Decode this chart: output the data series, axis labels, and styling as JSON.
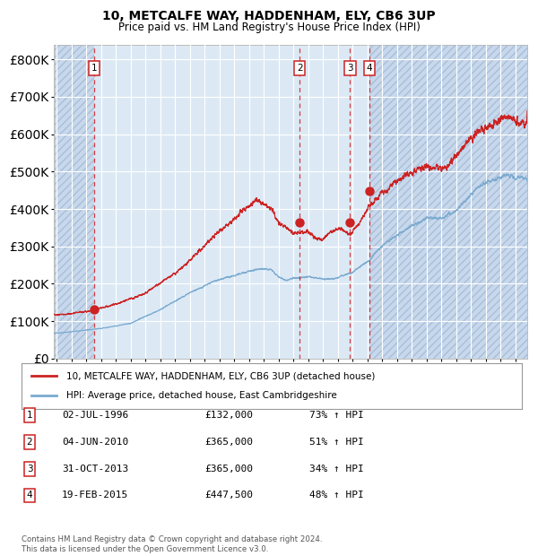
{
  "title": "10, METCALFE WAY, HADDENHAM, ELY, CB6 3UP",
  "subtitle": "Price paid vs. HM Land Registry's House Price Index (HPI)",
  "purchases": [
    {
      "label": "1",
      "date_num": 1996.54,
      "price": 132000,
      "date_str": "02-JUL-1996",
      "pct": "73%",
      "dir": "↑"
    },
    {
      "label": "2",
      "date_num": 2010.42,
      "price": 365000,
      "date_str": "04-JUN-2010",
      "pct": "51%",
      "dir": "↑"
    },
    {
      "label": "3",
      "date_num": 2013.83,
      "price": 365000,
      "date_str": "31-OCT-2013",
      "pct": "34%",
      "dir": "↑"
    },
    {
      "label": "4",
      "date_num": 2015.12,
      "price": 447500,
      "date_str": "19-FEB-2015",
      "pct": "48%",
      "dir": "↑"
    }
  ],
  "legend_line1": "10, METCALFE WAY, HADDENHAM, ELY, CB6 3UP (detached house)",
  "legend_line2": "HPI: Average price, detached house, East Cambridgeshire",
  "footer": "Contains HM Land Registry data © Crown copyright and database right 2024.\nThis data is licensed under the Open Government Licence v3.0.",
  "plot_bg": "#dce9f5",
  "hatch_bg": "#c8d8ec",
  "red_color": "#cc2222",
  "blue_color": "#7aaad0",
  "ylim": [
    0,
    840000
  ],
  "xlim_start": 1993.8,
  "xlim_end": 2025.8,
  "yticks": [
    0,
    100000,
    200000,
    300000,
    400000,
    500000,
    600000,
    700000,
    800000
  ]
}
